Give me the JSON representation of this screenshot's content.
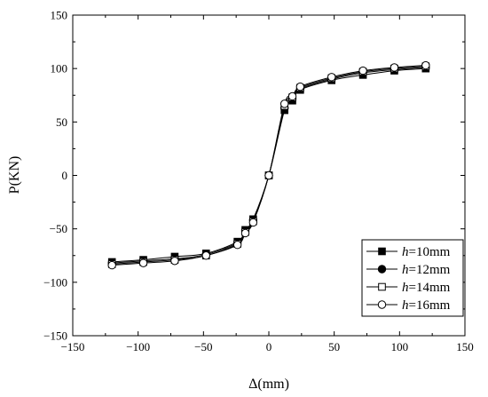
{
  "chart_data": {
    "type": "line",
    "title": "",
    "xlabel": "Δ(mm)",
    "ylabel": "P(KN)",
    "xlim": [
      -150,
      150
    ],
    "ylim": [
      -150,
      150
    ],
    "xticks": [
      -150,
      -100,
      -50,
      0,
      50,
      100,
      150
    ],
    "yticks": [
      -150,
      -100,
      -50,
      0,
      50,
      100,
      150
    ],
    "xtick_labels": [
      "−150",
      "−100",
      "−50",
      "0",
      "50",
      "100",
      "150"
    ],
    "ytick_labels": [
      "−150",
      "−100",
      "−50",
      "0",
      "50",
      "100",
      "150"
    ],
    "grid": false,
    "legend_position": "bottom-right",
    "x": [
      -120,
      -96,
      -72,
      -48,
      -24,
      -18,
      -12,
      0,
      12,
      18,
      24,
      48,
      72,
      96,
      120
    ],
    "series": [
      {
        "name": "h=10mm",
        "legend_italic": "h",
        "legend_rest": "=10mm",
        "marker": "filled-square",
        "values": [
          -81,
          -79,
          -76,
          -73,
          -62,
          -51,
          -41,
          0,
          61,
          70,
          80,
          89,
          94,
          98,
          100
        ]
      },
      {
        "name": "h=12mm",
        "legend_italic": "h",
        "legend_rest": "=12mm",
        "marker": "filled-circle",
        "values": [
          -82,
          -80,
          -78,
          -74,
          -63,
          -52,
          -42,
          0,
          63,
          72,
          81,
          90,
          96,
          99,
          101
        ]
      },
      {
        "name": "h=14mm",
        "legend_italic": "h",
        "legend_rest": "=14mm",
        "marker": "open-square",
        "values": [
          -83,
          -81,
          -79,
          -75,
          -64,
          -53,
          -43,
          0,
          65,
          73,
          82,
          91,
          97,
          100,
          102
        ]
      },
      {
        "name": "h=16mm",
        "legend_italic": "h",
        "legend_rest": "=16mm",
        "marker": "open-circle",
        "values": [
          -84,
          -82,
          -80,
          -75,
          -65,
          -54,
          -44,
          0,
          67,
          74,
          83,
          92,
          98,
          101,
          103
        ]
      }
    ]
  }
}
